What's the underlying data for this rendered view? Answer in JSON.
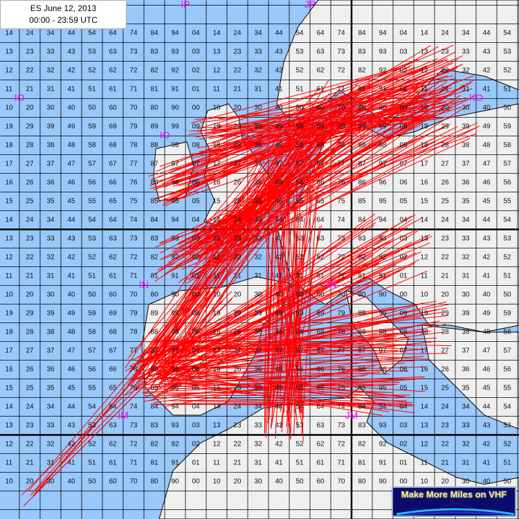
{
  "header": {
    "title": "ES June 12, 2013",
    "time_range": "00:00 - 23:59 UTC"
  },
  "logo": {
    "text": "Make More Miles on VHF"
  },
  "colors": {
    "sea": "#99c8fa",
    "land": "#efefef",
    "path": "#ff0000",
    "field_label": "#ff00ff",
    "grid": "#000000"
  },
  "fields": [
    "IP",
    "JP",
    "IO",
    "IO",
    "KO",
    "IN",
    "JN",
    "IM",
    "JM"
  ],
  "grid_rows": [
    [
      "14",
      "24",
      "34",
      "44",
      "54",
      "64",
      "74",
      "84",
      "94",
      "04",
      "14",
      "24",
      "34",
      "44",
      "54",
      "64",
      "74",
      "84",
      "94",
      "04",
      "14",
      "24",
      "34",
      "44",
      "54"
    ],
    [
      "13",
      "23",
      "33",
      "43",
      "53",
      "63",
      "73",
      "83",
      "93",
      "03",
      "13",
      "23",
      "33",
      "43",
      "53",
      "63",
      "73",
      "83",
      "93",
      "03",
      "13",
      "23",
      "33",
      "43",
      "53"
    ],
    [
      "12",
      "22",
      "32",
      "42",
      "52",
      "62",
      "72",
      "82",
      "92",
      "02",
      "12",
      "22",
      "32",
      "42",
      "52",
      "62",
      "72",
      "82",
      "92",
      "02",
      "12",
      "22",
      "32",
      "42",
      "52"
    ],
    [
      "11",
      "21",
      "31",
      "41",
      "51",
      "61",
      "71",
      "81",
      "91",
      "01",
      "11",
      "21",
      "31",
      "41",
      "51",
      "61",
      "71",
      "81",
      "91",
      "01",
      "11",
      "21",
      "31",
      "41",
      "51"
    ],
    [
      "10",
      "20",
      "30",
      "40",
      "50",
      "60",
      "70",
      "80",
      "90",
      "00",
      "10",
      "20",
      "30",
      "40",
      "50",
      "60",
      "70",
      "80",
      "90",
      "00",
      "10",
      "20",
      "30",
      "40",
      "50"
    ],
    [
      "19",
      "29",
      "39",
      "49",
      "59",
      "69",
      "79",
      "89",
      "99",
      "09",
      "19",
      "29",
      "39",
      "49",
      "59",
      "69",
      "79",
      "89",
      "99",
      "09",
      "19",
      "29",
      "39",
      "49",
      "59"
    ],
    [
      "18",
      "28",
      "38",
      "48",
      "58",
      "68",
      "78",
      "88",
      "98",
      "08",
      "18",
      "28",
      "38",
      "48",
      "58",
      "68",
      "78",
      "88",
      "98",
      "08",
      "18",
      "28",
      "38",
      "48",
      "58"
    ],
    [
      "17",
      "27",
      "37",
      "47",
      "57",
      "67",
      "77",
      "87",
      "97",
      "07",
      "17",
      "27",
      "37",
      "47",
      "57",
      "67",
      "77",
      "87",
      "97",
      "07",
      "17",
      "27",
      "37",
      "47",
      "57"
    ],
    [
      "16",
      "26",
      "36",
      "46",
      "56",
      "66",
      "76",
      "86",
      "96",
      "06",
      "16",
      "26",
      "36",
      "46",
      "56",
      "66",
      "76",
      "86",
      "96",
      "06",
      "16",
      "26",
      "36",
      "46",
      "56"
    ],
    [
      "15",
      "25",
      "35",
      "45",
      "55",
      "65",
      "75",
      "85",
      "95",
      "05",
      "15",
      "25",
      "35",
      "45",
      "55",
      "65",
      "75",
      "85",
      "95",
      "05",
      "15",
      "25",
      "35",
      "45",
      "55"
    ],
    [
      "14",
      "24",
      "34",
      "44",
      "54",
      "64",
      "74",
      "84",
      "94",
      "04",
      "14",
      "24",
      "34",
      "44",
      "54",
      "64",
      "74",
      "84",
      "94",
      "04",
      "14",
      "24",
      "34",
      "44",
      "54"
    ],
    [
      "13",
      "23",
      "33",
      "43",
      "53",
      "63",
      "73",
      "83",
      "93",
      "03",
      "13",
      "23",
      "33",
      "43",
      "53",
      "63",
      "73",
      "83",
      "93",
      "03",
      "13",
      "23",
      "33",
      "43",
      "53"
    ],
    [
      "12",
      "22",
      "32",
      "42",
      "52",
      "62",
      "72",
      "82",
      "92",
      "02",
      "12",
      "22",
      "32",
      "42",
      "52",
      "62",
      "72",
      "82",
      "92",
      "02",
      "12",
      "22",
      "32",
      "42",
      "52"
    ],
    [
      "11",
      "21",
      "31",
      "41",
      "51",
      "61",
      "71",
      "81",
      "91",
      "01",
      "11",
      "21",
      "31",
      "41",
      "51",
      "61",
      "71",
      "81",
      "91",
      "01",
      "11",
      "21",
      "31",
      "41",
      "51"
    ],
    [
      "10",
      "20",
      "30",
      "40",
      "50",
      "60",
      "70",
      "80",
      "90",
      "00",
      "10",
      "20",
      "30",
      "40",
      "50",
      "60",
      "70",
      "80",
      "90",
      "00",
      "10",
      "20",
      "30",
      "40",
      "50"
    ],
    [
      "19",
      "29",
      "39",
      "49",
      "59",
      "69",
      "79",
      "89",
      "99",
      "09",
      "19",
      "29",
      "39",
      "49",
      "59",
      "69",
      "79",
      "89",
      "99",
      "09",
      "19",
      "29",
      "39",
      "49",
      "59"
    ],
    [
      "18",
      "28",
      "38",
      "48",
      "58",
      "68",
      "78",
      "88",
      "98",
      "08",
      "18",
      "28",
      "38",
      "48",
      "58",
      "68",
      "78",
      "88",
      "98",
      "08",
      "18",
      "28",
      "38",
      "48",
      "58"
    ],
    [
      "17",
      "27",
      "37",
      "47",
      "57",
      "67",
      "77",
      "87",
      "97",
      "07",
      "17",
      "27",
      "37",
      "47",
      "57",
      "67",
      "77",
      "87",
      "97",
      "07",
      "17",
      "27",
      "37",
      "47",
      "57"
    ],
    [
      "16",
      "26",
      "36",
      "46",
      "56",
      "66",
      "76",
      "86",
      "96",
      "06",
      "16",
      "26",
      "36",
      "46",
      "56",
      "66",
      "76",
      "86",
      "96",
      "06",
      "16",
      "26",
      "36",
      "46",
      "56"
    ],
    [
      "15",
      "25",
      "35",
      "45",
      "55",
      "65",
      "75",
      "85",
      "95",
      "05",
      "15",
      "25",
      "35",
      "45",
      "55",
      "65",
      "75",
      "85",
      "95",
      "05",
      "15",
      "25",
      "35",
      "45",
      "55"
    ],
    [
      "14",
      "24",
      "34",
      "44",
      "54",
      "64",
      "74",
      "84",
      "94",
      "04",
      "14",
      "24",
      "34",
      "44",
      "54",
      "64",
      "74",
      "84",
      "94",
      "04",
      "14",
      "24",
      "34",
      "44",
      "54"
    ],
    [
      "13",
      "23",
      "33",
      "43",
      "53",
      "63",
      "73",
      "83",
      "93",
      "03",
      "13",
      "23",
      "33",
      "43",
      "53",
      "63",
      "73",
      "83",
      "93",
      "03",
      "13",
      "23",
      "33",
      "43",
      "53"
    ],
    [
      "12",
      "22",
      "32",
      "42",
      "52",
      "62",
      "72",
      "82",
      "92",
      "02",
      "12",
      "22",
      "32",
      "42",
      "52",
      "62",
      "72",
      "82",
      "92",
      "02",
      "12",
      "22",
      "32",
      "42",
      "52"
    ],
    [
      "11",
      "21",
      "31",
      "41",
      "51",
      "61",
      "71",
      "81",
      "91",
      "01",
      "11",
      "21",
      "31",
      "41",
      "51",
      "61",
      "71",
      "81",
      "91",
      "01",
      "11",
      "21",
      "31",
      "41",
      "51"
    ],
    [
      "10",
      "20",
      "30",
      "40",
      "50",
      "60",
      "70",
      "80",
      "90",
      "00",
      "10",
      "20",
      "30",
      "40",
      "50",
      "60",
      "70",
      "80",
      "90",
      "00",
      "10",
      "20",
      "30",
      "40",
      "50"
    ]
  ]
}
